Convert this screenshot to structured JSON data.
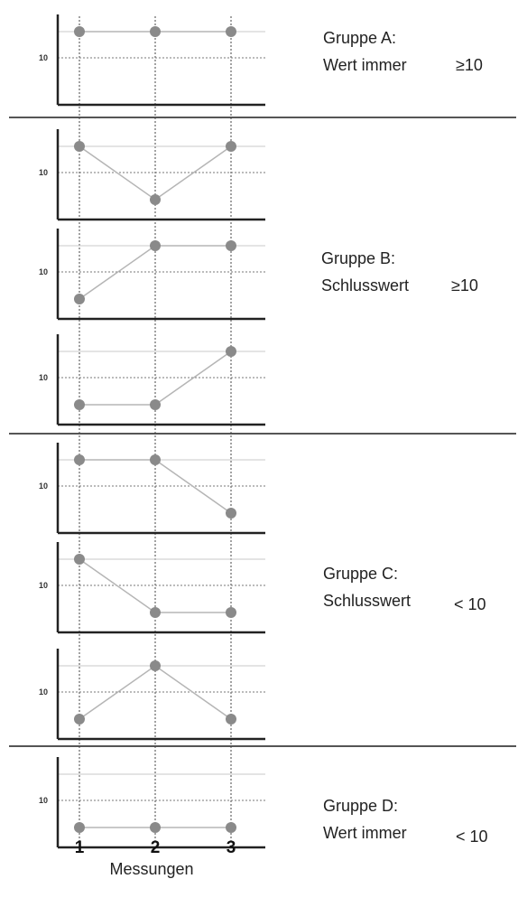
{
  "chart_data": {
    "type": "line",
    "xlabel": "Messungen",
    "x_ticks": [
      "1",
      "2",
      "3"
    ],
    "threshold_tick": "10",
    "groups": [
      {
        "label_line1": "Gruppe A:",
        "label_line2": "Wert immer",
        "label_cond": "≥10",
        "panel_count": 1
      },
      {
        "label_line1": "Gruppe B:",
        "label_line2": "Schlusswert",
        "label_cond": "≥10",
        "panel_count": 3
      },
      {
        "label_line1": "Gruppe C:",
        "label_line2": "Schlusswert",
        "label_cond": "< 10",
        "panel_count": 3
      },
      {
        "label_line1": "Gruppe D:",
        "label_line2": "Wert immer",
        "label_cond": "< 10",
        "panel_count": 1
      }
    ],
    "panels": [
      {
        "group": 0,
        "values": [
          "high",
          "high",
          "high"
        ]
      },
      {
        "group": 1,
        "values": [
          "high",
          "low",
          "high"
        ]
      },
      {
        "group": 1,
        "values": [
          "low",
          "high",
          "high"
        ]
      },
      {
        "group": 1,
        "values": [
          "low",
          "low",
          "high"
        ]
      },
      {
        "group": 2,
        "values": [
          "high",
          "high",
          "low"
        ]
      },
      {
        "group": 2,
        "values": [
          "high",
          "low",
          "low"
        ]
      },
      {
        "group": 2,
        "values": [
          "low",
          "high",
          "low"
        ]
      },
      {
        "group": 3,
        "values": [
          "low",
          "low",
          "low"
        ]
      }
    ],
    "colors": {
      "marker": "#8a8a8a",
      "line": "#b5b5b5",
      "axis": "#222222",
      "separator": "#555555",
      "grid": "#c8c8c8"
    }
  }
}
